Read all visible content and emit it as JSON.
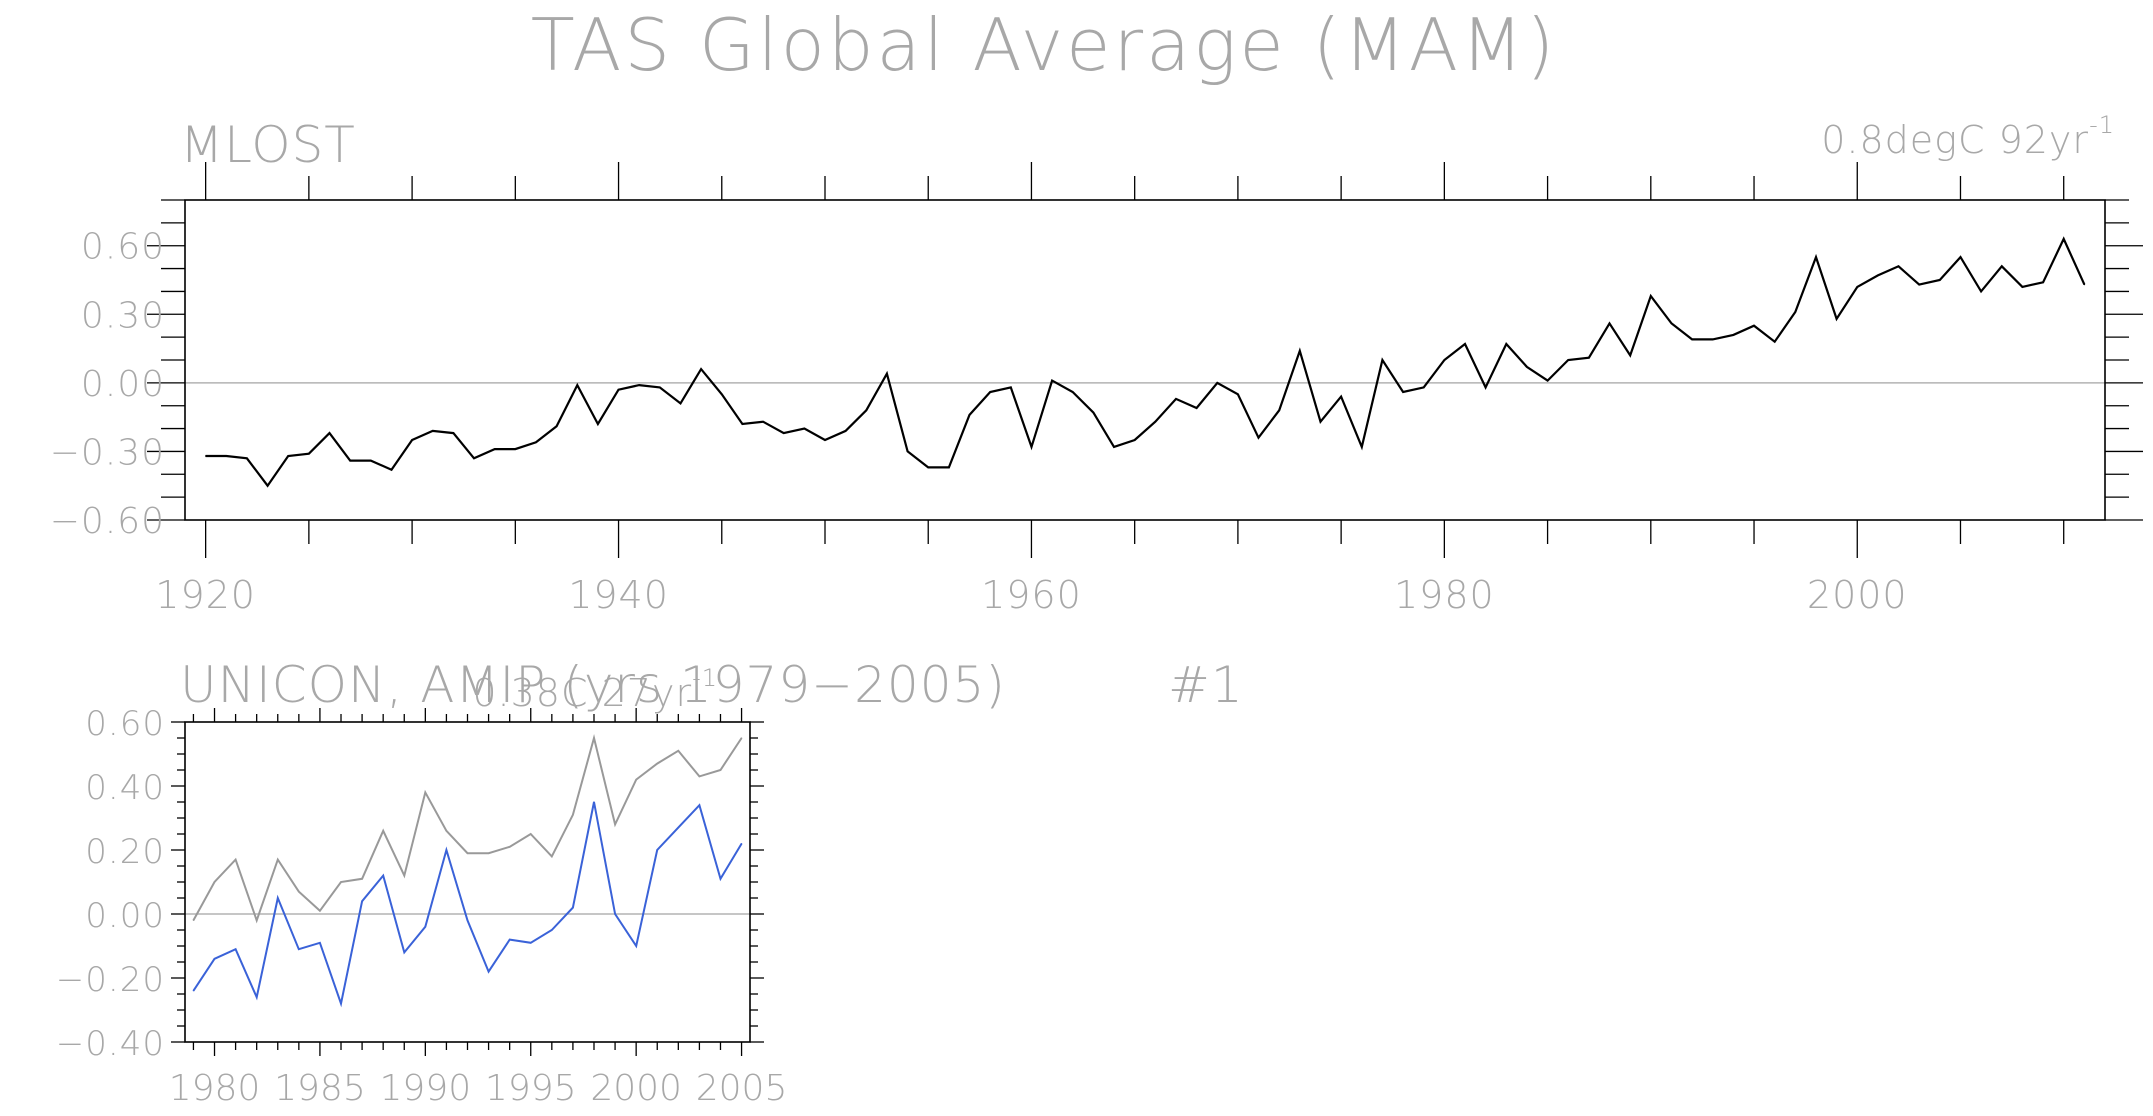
{
  "title": "TAS Global Average (MAM)",
  "colors": {
    "text": "#a8a8a8",
    "axis": "#000000",
    "zero_line": "#b3b3b3",
    "obs_line": "#000000",
    "obs_small_line": "#999999",
    "model_line": "#3a62d8"
  },
  "chart_data": [
    {
      "type": "line",
      "title": "MLOST",
      "annotation": "0.8degC 92yr",
      "annotation_superscript": "-1",
      "xlim": [
        1919,
        2012
      ],
      "ylim": [
        -0.6,
        0.8
      ],
      "y_ticks": [
        -0.6,
        -0.3,
        0.0,
        0.3,
        0.6
      ],
      "y_tick_labels": [
        "−0.60",
        "−0.30",
        "0.00",
        "0.30",
        "0.60"
      ],
      "x_ticks": [
        1920,
        1940,
        1960,
        1980,
        2000
      ],
      "x_tick_labels": [
        "1920",
        "1940",
        "1960",
        "1980",
        "2000"
      ],
      "x_minor_step": 5,
      "y_minor_step": 0.1,
      "zero_line": true,
      "grid": false,
      "series": [
        {
          "x": [
            1920,
            1921,
            1922,
            1923,
            1924,
            1925,
            1926,
            1927,
            1928,
            1929,
            1930,
            1931,
            1932,
            1933,
            1934,
            1935,
            1936,
            1937,
            1938,
            1939,
            1940,
            1941,
            1942,
            1943,
            1944,
            1945,
            1946,
            1947,
            1948,
            1949,
            1950,
            1951,
            1952,
            1953,
            1954,
            1955,
            1956,
            1957,
            1958,
            1959,
            1960,
            1961,
            1962,
            1963,
            1964,
            1965,
            1966,
            1967,
            1968,
            1969,
            1970,
            1971,
            1972,
            1973,
            1974,
            1975,
            1976,
            1977,
            1978,
            1979,
            1980,
            1981,
            1982,
            1983,
            1984,
            1985,
            1986,
            1987,
            1988,
            1989,
            1990,
            1991,
            1992,
            1993,
            1994,
            1995,
            1996,
            1997,
            1998,
            1999,
            2000,
            2001,
            2002,
            2003,
            2004,
            2005,
            2006,
            2007,
            2008,
            2009,
            2010,
            2011
          ],
          "values": [
            -0.32,
            -0.32,
            -0.33,
            -0.45,
            -0.32,
            -0.31,
            -0.22,
            -0.34,
            -0.34,
            -0.38,
            -0.25,
            -0.21,
            -0.22,
            -0.33,
            -0.29,
            -0.29,
            -0.26,
            -0.19,
            -0.01,
            -0.18,
            -0.03,
            -0.01,
            -0.02,
            -0.09,
            0.06,
            -0.05,
            -0.18,
            -0.17,
            -0.22,
            -0.2,
            -0.25,
            -0.21,
            -0.12,
            0.04,
            -0.3,
            -0.37,
            -0.37,
            -0.14,
            -0.04,
            -0.02,
            -0.28,
            0.01,
            -0.04,
            -0.13,
            -0.28,
            -0.25,
            -0.17,
            -0.07,
            -0.11,
            0.0,
            -0.05,
            -0.24,
            -0.12,
            0.14,
            -0.17,
            -0.06,
            -0.28,
            0.1,
            -0.04,
            -0.02,
            0.1,
            0.17,
            -0.02,
            0.17,
            0.07,
            0.01,
            0.1,
            0.11,
            0.26,
            0.12,
            0.38,
            0.26,
            0.19,
            0.19,
            0.21,
            0.25,
            0.18,
            0.31,
            0.55,
            0.28,
            0.42,
            0.47,
            0.51,
            0.43,
            0.45,
            0.55,
            0.4,
            0.51,
            0.42,
            0.44,
            0.63,
            0.43
          ]
        }
      ]
    },
    {
      "type": "line",
      "title": "UNICON, AMIP (yrs 1979−2005)",
      "member_label": "#1",
      "annotation": "0.38C 27yr",
      "annotation_superscript": "-1",
      "xlim": [
        1978.6,
        2005.4
      ],
      "ylim": [
        -0.4,
        0.6
      ],
      "y_ticks": [
        -0.4,
        -0.2,
        0.0,
        0.2,
        0.4,
        0.6
      ],
      "y_tick_labels": [
        "−0.40",
        "−0.20",
        "0.00",
        "0.20",
        "0.40",
        "0.60"
      ],
      "x_ticks": [
        1980,
        1985,
        1990,
        1995,
        2000,
        2005
      ],
      "x_tick_labels": [
        "1980",
        "1985",
        "1990",
        "1995",
        "2000",
        "2005"
      ],
      "x_minor_step": 1,
      "y_minor_step": 0.05,
      "zero_line": true,
      "grid": false,
      "series": [
        {
          "color_key": "obs_small_line",
          "x": [
            1979,
            1980,
            1981,
            1982,
            1983,
            1984,
            1985,
            1986,
            1987,
            1988,
            1989,
            1990,
            1991,
            1992,
            1993,
            1994,
            1995,
            1996,
            1997,
            1998,
            1999,
            2000,
            2001,
            2002,
            2003,
            2004,
            2005
          ],
          "values": [
            -0.02,
            0.1,
            0.17,
            -0.02,
            0.17,
            0.07,
            0.01,
            0.1,
            0.11,
            0.26,
            0.12,
            0.38,
            0.26,
            0.19,
            0.19,
            0.21,
            0.25,
            0.18,
            0.31,
            0.55,
            0.28,
            0.42,
            0.47,
            0.51,
            0.43,
            0.45,
            0.55
          ]
        },
        {
          "color_key": "model_line",
          "x": [
            1979,
            1980,
            1981,
            1982,
            1983,
            1984,
            1985,
            1986,
            1987,
            1988,
            1989,
            1990,
            1991,
            1992,
            1993,
            1994,
            1995,
            1996,
            1997,
            1998,
            1999,
            2000,
            2001,
            2002,
            2003,
            2004,
            2005
          ],
          "values": [
            -0.24,
            -0.14,
            -0.11,
            -0.26,
            0.05,
            -0.11,
            -0.09,
            -0.28,
            0.04,
            0.12,
            -0.12,
            -0.04,
            0.2,
            -0.02,
            -0.18,
            -0.08,
            -0.09,
            -0.05,
            0.02,
            0.35,
            0.0,
            -0.1,
            0.2,
            0.27,
            0.34,
            0.11,
            0.22
          ]
        }
      ]
    }
  ]
}
